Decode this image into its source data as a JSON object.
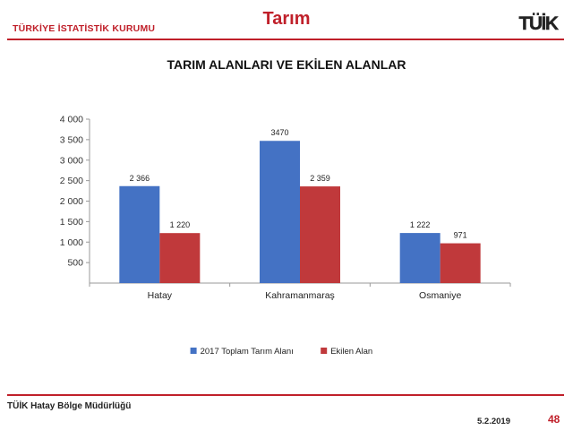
{
  "header": {
    "organization": "TÜRKİYE İSTATİSTİK KURUMU",
    "section_title": "Tarım",
    "logo_text": "TÜİK",
    "accent_color": "#c0202a"
  },
  "chart_data": {
    "type": "bar",
    "title": "TARIM ALANLARI VE EKİLEN ALANLAR",
    "categories": [
      "Hatay",
      "Kahramanmaraş",
      "Osmaniye"
    ],
    "series": [
      {
        "name": "2017 Toplam Tarım Alanı",
        "values": [
          2366,
          3470,
          1222
        ],
        "labels": [
          "2 366",
          "3470",
          "1 222"
        ],
        "color": "#4472c4"
      },
      {
        "name": "Ekilen Alan",
        "values": [
          1220,
          2359,
          971
        ],
        "labels": [
          "1 220",
          "2 359",
          "971"
        ],
        "color": "#c0393b"
      }
    ],
    "yticks": [
      {
        "value": 500,
        "label": "500"
      },
      {
        "value": 1000,
        "label": "1 000"
      },
      {
        "value": 1500,
        "label": "1 500"
      },
      {
        "value": 2000,
        "label": "2 000"
      },
      {
        "value": 2500,
        "label": "2 500"
      },
      {
        "value": 3000,
        "label": "3 000"
      },
      {
        "value": 3500,
        "label": "3 500"
      },
      {
        "value": 4000,
        "label": "4 000"
      }
    ],
    "ylim": [
      0,
      4000
    ],
    "xlabel": "",
    "ylabel": "",
    "grid": false,
    "legend_position": "bottom"
  },
  "footer": {
    "office": "TÜİK Hatay Bölge Müdürlüğü",
    "date": "5.2.2019",
    "page_number": "48"
  }
}
